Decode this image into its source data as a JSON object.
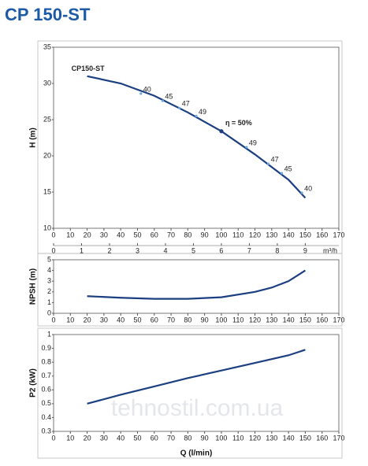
{
  "title": "CP 150-ST",
  "watermark": "tehnostil.com.ua",
  "chart_data": [
    {
      "type": "line",
      "ylabel": "H (m)",
      "xlim": [
        0,
        170
      ],
      "xticks": [
        0,
        10,
        20,
        30,
        40,
        50,
        60,
        70,
        80,
        90,
        100,
        110,
        120,
        130,
        140,
        150,
        160,
        170
      ],
      "ylim": [
        10,
        35
      ],
      "yticks": [
        10,
        15,
        20,
        25,
        30,
        35
      ],
      "x2lim": [
        0,
        10.2
      ],
      "x2ticks": [
        0,
        1,
        2,
        3,
        4,
        5,
        6,
        7,
        8,
        9
      ],
      "x2label": "m³/h",
      "x": [
        20,
        40,
        60,
        80,
        100,
        120,
        140,
        150
      ],
      "series": [
        {
          "name": "CP150-ST",
          "color": "#1b3f80",
          "values": [
            31,
            30,
            28.3,
            26,
            23.4,
            20.2,
            16.7,
            14.2
          ]
        }
      ],
      "efficiency": {
        "x": [
          52,
          65,
          75,
          85,
          115,
          128,
          136,
          148
        ],
        "y": [
          28.6,
          27.6,
          26.6,
          25.5,
          21.2,
          18.9,
          17.6,
          14.9
        ],
        "values": [
          40,
          45,
          47,
          49,
          49,
          47,
          45,
          40
        ]
      },
      "annotations": [
        {
          "text": "η = 50%",
          "x": 100,
          "y": 23.4
        }
      ]
    },
    {
      "type": "line",
      "ylabel": "NPSH (m)",
      "xlim": [
        0,
        170
      ],
      "xticks": [
        0,
        10,
        20,
        30,
        40,
        50,
        60,
        70,
        80,
        90,
        100,
        110,
        120,
        130,
        140,
        150,
        160,
        170
      ],
      "ylim": [
        0,
        5
      ],
      "yticks": [
        0,
        1,
        2,
        3,
        4,
        5
      ],
      "x": [
        20,
        40,
        60,
        80,
        100,
        120,
        130,
        140,
        150
      ],
      "series": [
        {
          "color": "#1b3f80",
          "values": [
            1.6,
            1.45,
            1.35,
            1.35,
            1.5,
            2.0,
            2.4,
            3.0,
            4.0
          ]
        }
      ]
    },
    {
      "type": "line",
      "ylabel": "P2 (kW)",
      "xlabel": "Q (l/min)",
      "xlim": [
        0,
        170
      ],
      "xticks": [
        0,
        10,
        20,
        30,
        40,
        50,
        60,
        70,
        80,
        90,
        100,
        110,
        120,
        130,
        140,
        150,
        160,
        170
      ],
      "ylim": [
        0.3,
        1
      ],
      "yticks": [
        0.3,
        0.4,
        0.5,
        0.6,
        0.7,
        0.8,
        0.9,
        1
      ],
      "x": [
        20,
        40,
        60,
        80,
        100,
        120,
        140,
        150
      ],
      "series": [
        {
          "color": "#1b3f80",
          "values": [
            0.5,
            0.565,
            0.625,
            0.685,
            0.74,
            0.795,
            0.85,
            0.89
          ]
        }
      ]
    }
  ]
}
